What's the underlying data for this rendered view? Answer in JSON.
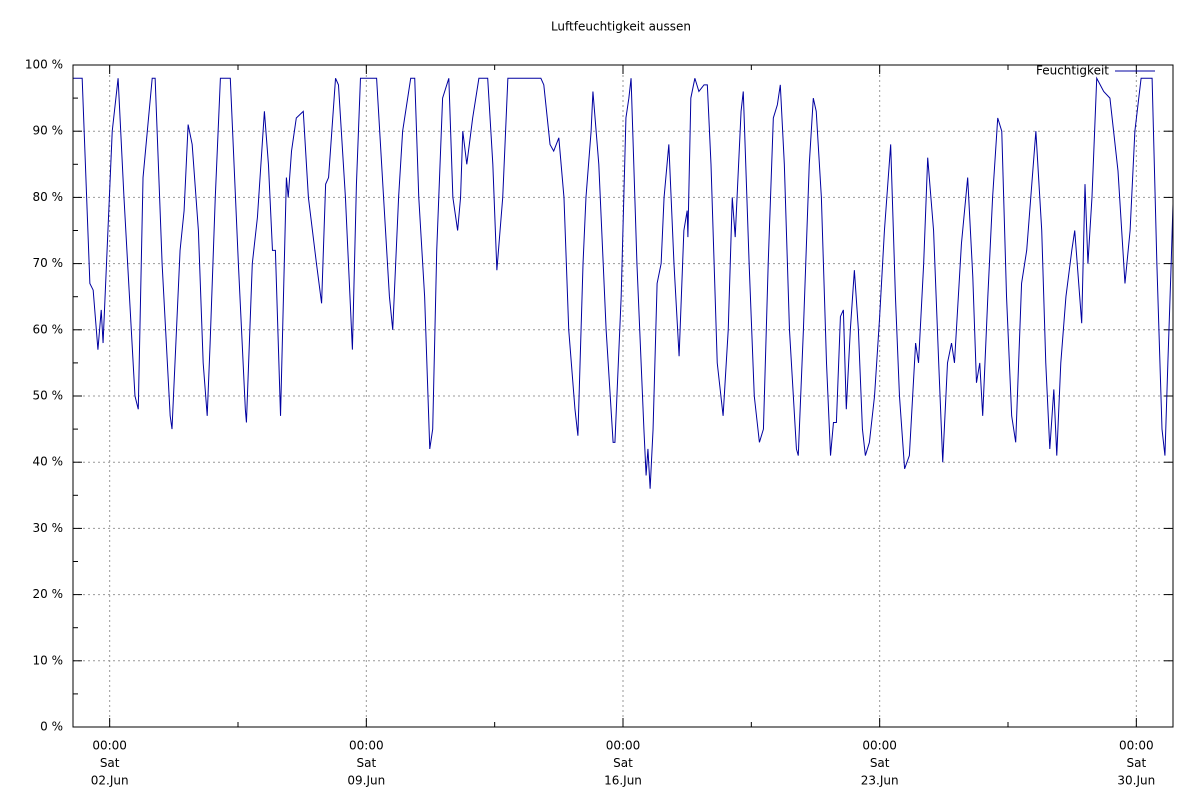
{
  "chart_data": {
    "type": "line",
    "title": "Luftfeuchtigkeit aussen",
    "xlim": [
      1,
      31
    ],
    "xticks": [
      {
        "value": 2,
        "label": [
          "00:00",
          "Sat",
          "02.Jun"
        ]
      },
      {
        "value": 9,
        "label": [
          "00:00",
          "Sat",
          "09.Jun"
        ]
      },
      {
        "value": 16,
        "label": [
          "00:00",
          "Sat",
          "16.Jun"
        ]
      },
      {
        "value": 23,
        "label": [
          "00:00",
          "Sat",
          "23.Jun"
        ]
      },
      {
        "value": 30,
        "label": [
          "00:00",
          "Sat",
          "30.Jun"
        ]
      }
    ],
    "xminorticks": [
      5.5,
      12.5,
      19.5,
      26.5
    ],
    "ylim": [
      0,
      100
    ],
    "yticks": [
      {
        "value": 0,
        "label": "0 %"
      },
      {
        "value": 10,
        "label": "10 %"
      },
      {
        "value": 20,
        "label": "20 %"
      },
      {
        "value": 30,
        "label": "30 %"
      },
      {
        "value": 40,
        "label": "40 %"
      },
      {
        "value": 50,
        "label": "50 %"
      },
      {
        "value": 60,
        "label": "60 %"
      },
      {
        "value": 70,
        "label": "70 %"
      },
      {
        "value": 80,
        "label": "80 %"
      },
      {
        "value": 90,
        "label": "90 %"
      },
      {
        "value": 100,
        "label": "100 %"
      }
    ],
    "yminorticks": [
      5,
      15,
      25,
      35,
      45,
      55,
      65,
      75,
      85,
      95
    ],
    "grid": true,
    "legend": "top-right",
    "x": [
      1.0,
      1.25,
      1.46,
      1.55,
      1.68,
      1.77,
      1.82,
      2.07,
      2.23,
      2.39,
      2.69,
      2.78,
      2.91,
      3.16,
      3.24,
      3.43,
      3.65,
      3.7,
      3.92,
      4.03,
      4.14,
      4.25,
      4.42,
      4.55,
      4.66,
      4.74,
      4.88,
      5.02,
      5.29,
      5.51,
      5.7,
      5.73,
      5.89,
      6.03,
      6.22,
      6.33,
      6.44,
      6.52,
      6.66,
      6.82,
      6.87,
      6.96,
      7.09,
      7.28,
      7.42,
      7.64,
      7.78,
      7.89,
      7.97,
      8.16,
      8.24,
      8.43,
      8.62,
      8.73,
      8.84,
      9.28,
      9.47,
      9.63,
      9.72,
      9.88,
      9.99,
      10.21,
      10.32,
      10.43,
      10.59,
      10.73,
      10.81,
      10.92,
      11.08,
      11.25,
      11.36,
      11.49,
      11.57,
      11.63,
      11.74,
      11.9,
      12.07,
      12.31,
      12.45,
      12.56,
      12.72,
      12.86,
      13.76,
      13.84,
      14.01,
      14.11,
      14.25,
      14.39,
      14.52,
      14.69,
      14.77,
      14.91,
      14.99,
      15.13,
      15.18,
      15.34,
      15.54,
      15.73,
      15.78,
      15.95,
      16.08,
      16.16,
      16.22,
      16.38,
      16.57,
      16.63,
      16.68,
      16.74,
      16.82,
      16.93,
      17.04,
      17.12,
      17.25,
      17.39,
      17.53,
      17.66,
      17.75,
      17.77,
      17.85,
      17.96,
      18.07,
      18.21,
      18.3,
      18.4,
      18.57,
      18.73,
      18.87,
      18.98,
      19.06,
      19.22,
      19.28,
      19.44,
      19.58,
      19.72,
      19.83,
      19.96,
      20.1,
      20.21,
      20.29,
      20.4,
      20.54,
      20.73,
      20.78,
      20.92,
      21.08,
      21.19,
      21.27,
      21.41,
      21.55,
      21.66,
      21.74,
      21.82,
      21.93,
      22.01,
      22.09,
      22.2,
      22.31,
      22.42,
      22.53,
      22.61,
      22.72,
      22.86,
      23.0,
      23.13,
      23.3,
      23.43,
      23.54,
      23.68,
      23.81,
      23.98,
      24.06,
      24.2,
      24.31,
      24.47,
      24.61,
      24.72,
      24.85,
      24.96,
      25.04,
      25.23,
      25.4,
      25.54,
      25.64,
      25.73,
      25.81,
      25.95,
      26.08,
      26.22,
      26.33,
      26.46,
      26.6,
      26.71,
      26.87,
      27.01,
      27.26,
      27.42,
      27.53,
      27.64,
      27.75,
      27.83,
      27.94,
      28.08,
      28.24,
      28.32,
      28.51,
      28.6,
      28.68,
      28.79,
      28.92,
      29.11,
      29.28,
      29.5,
      29.69,
      29.83,
      29.96,
      30.13,
      30.43,
      30.56,
      30.7,
      30.78,
      30.86,
      30.95,
      31.0
    ],
    "series": [
      {
        "name": "Feuchtigkeit",
        "color": "#0000a0",
        "values": [
          98,
          98,
          67,
          66,
          57,
          63,
          58,
          90,
          98,
          80,
          50,
          48,
          83,
          98,
          98,
          70,
          47,
          45,
          72,
          78,
          91,
          88,
          75,
          55,
          47,
          58,
          80,
          98,
          98,
          70,
          48,
          46,
          70,
          77,
          93,
          85,
          72,
          72,
          47,
          83,
          80,
          87,
          92,
          93,
          80,
          70,
          64,
          82,
          83,
          98,
          97,
          80,
          57,
          82,
          98,
          98,
          80,
          65,
          60,
          80,
          90,
          98,
          98,
          80,
          65,
          42,
          45,
          72,
          95,
          98,
          80,
          75,
          80,
          90,
          85,
          92,
          98,
          98,
          85,
          69,
          80,
          98,
          98,
          97,
          88,
          87,
          89,
          80,
          60,
          48,
          44,
          70,
          80,
          90,
          96,
          85,
          60,
          43,
          43,
          65,
          92,
          95,
          98,
          70,
          45,
          38,
          42,
          36,
          45,
          67,
          70,
          80,
          88,
          70,
          56,
          75,
          78,
          74,
          95,
          98,
          96,
          97,
          97,
          85,
          55,
          47,
          60,
          80,
          74,
          93,
          96,
          70,
          50,
          43,
          45,
          70,
          92,
          94,
          97,
          85,
          60,
          42,
          41,
          60,
          85,
          95,
          93,
          80,
          55,
          41,
          46,
          46,
          62,
          63,
          48,
          60,
          69,
          60,
          45,
          41,
          43,
          50,
          62,
          75,
          88,
          65,
          50,
          39,
          41,
          58,
          55,
          70,
          86,
          75,
          55,
          40,
          55,
          58,
          55,
          73,
          83,
          68,
          52,
          55,
          47,
          65,
          80,
          92,
          90,
          65,
          47,
          43,
          67,
          72,
          90,
          75,
          55,
          42,
          51,
          41,
          55,
          65,
          72,
          75,
          61,
          82,
          70,
          80,
          98,
          96,
          95,
          84,
          67,
          75,
          90,
          98,
          98,
          70,
          45,
          41,
          55,
          70,
          79
        ]
      }
    ]
  }
}
